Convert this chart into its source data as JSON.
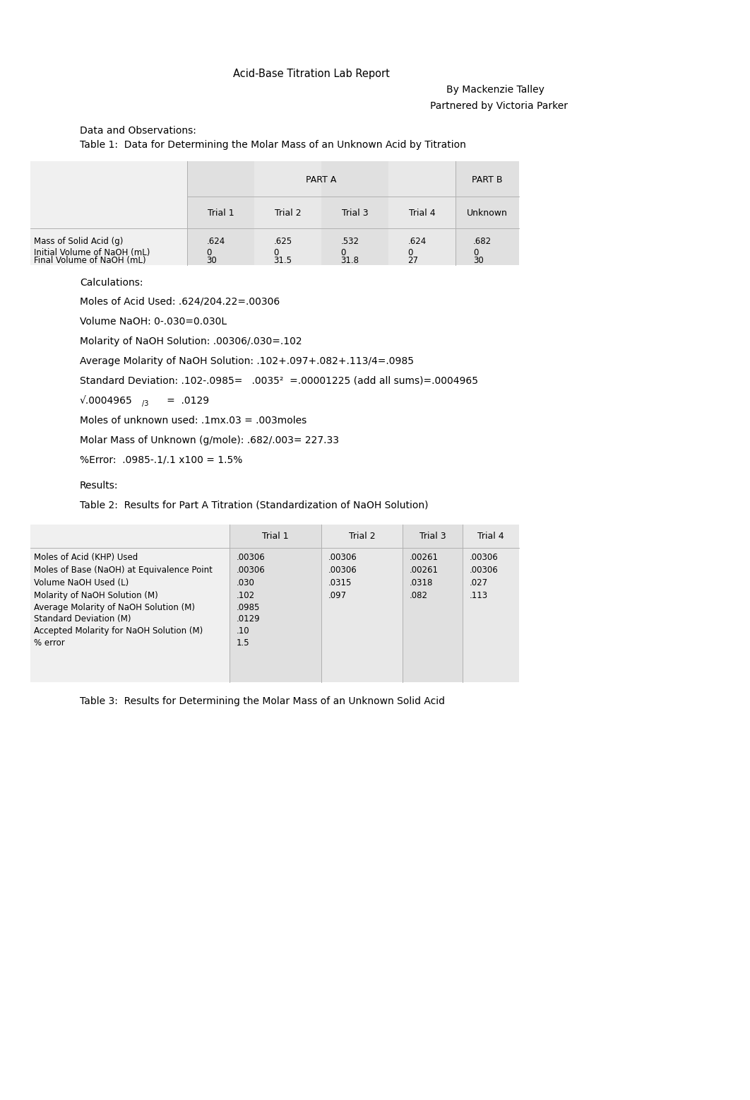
{
  "title": "Acid-Base Titration Lab Report",
  "author_line1": "By Mackenzie Talley",
  "author_line2": "Partnered by Victoria Parker",
  "section1": "Data and Observations:",
  "table1_title": "Table 1:  Data for Determining the Molar Mass of an Unknown Acid by Titration",
  "table1_rows": [
    [
      "Mass of Solid Acid (g)",
      ".624",
      ".625",
      ".532",
      ".624",
      ".682"
    ],
    [
      "Initial Volume of NaOH (mL)",
      "0",
      "0",
      "0",
      "0",
      "0"
    ],
    [
      "Final Volume of NaOH (mL)",
      "30",
      "31.5",
      "31.8",
      "27",
      "30"
    ]
  ],
  "calc_title": "Calculations:",
  "calc_line0": "Moles of Acid Used: .624/204.22=.00306",
  "calc_line1": "Volume NaOH: 0-.030=0.030L",
  "calc_line2": "Molarity of NaOH Solution: .00306/.030=.102",
  "calc_line3": "Average Molarity of NaOH Solution: .102+.097+.082+.113/4=.0985",
  "calc_line4": "Standard Deviation: .102-.0985=   .0035²  =.00001225 (add all sums)=.0004965",
  "calc_line5a": "√.0004965",
  "calc_line5b": "/3",
  "calc_line5c": "   =  .0129",
  "calc_line6": "Moles of unknown used: .1mx.03 = .003moles",
  "calc_line7": "Molar Mass of Unknown (g/mole): .682/.003= 227.33",
  "calc_line8": "%Error:  .0985-.1/.1 x100 = 1.5%",
  "results_title": "Results:",
  "table2_title": "Table 2:  Results for Part A Titration (Standardization of NaOH Solution)",
  "table2_rows": [
    [
      "Moles of Acid (KHP) Used",
      ".00306",
      ".00306",
      ".00261",
      ".00306"
    ],
    [
      "Moles of Base (NaOH) at Equivalence Point",
      ".00306",
      ".00306",
      ".00261",
      ".00306"
    ],
    [
      "Volume NaOH Used (L)",
      ".030",
      ".0315",
      ".0318",
      ".027"
    ],
    [
      "Molarity of NaOH Solution (M)",
      ".102",
      ".097",
      ".082",
      ".113"
    ],
    [
      "Average Molarity of NaOH Solution (M)",
      ".0985",
      "",
      "",
      ""
    ],
    [
      "Standard Deviation (M)",
      ".0129",
      "",
      "",
      ""
    ],
    [
      "Accepted Molarity for NaOH Solution (M)",
      ".10",
      "",
      "",
      ""
    ],
    [
      "% error",
      "1.5",
      "",
      "",
      ""
    ]
  ],
  "table3_title": "Table 3:  Results for Determining the Molar Mass of an Unknown Solid Acid",
  "bg_color": "#ffffff"
}
